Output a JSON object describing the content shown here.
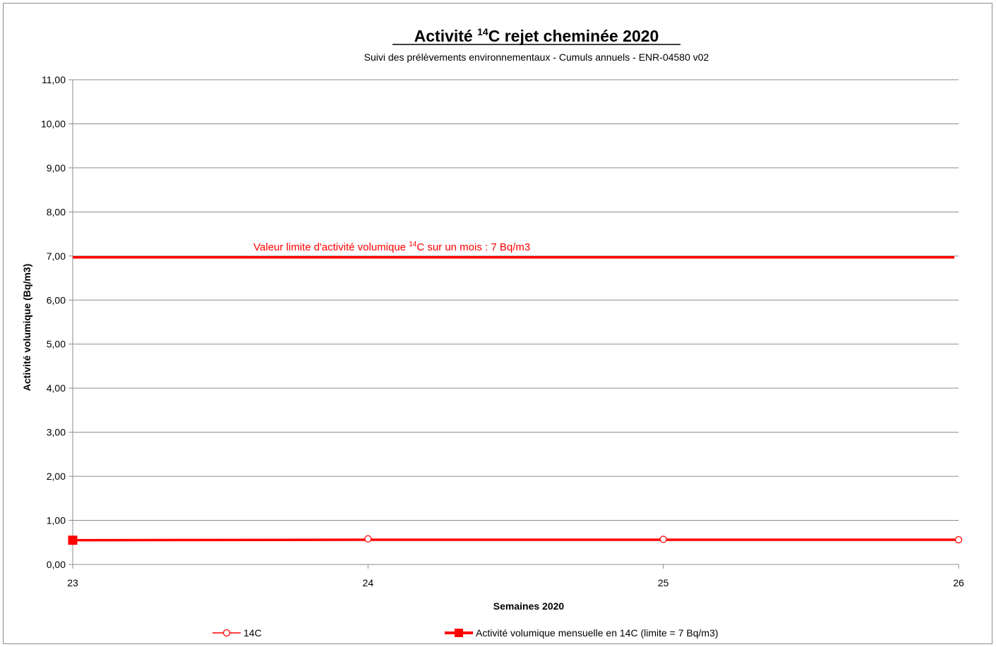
{
  "chart_data": {
    "type": "line",
    "title_main": "Activité ",
    "title_sup": "14",
    "title_rest": "C rejet cheminée 2020",
    "subtitle": "Suivi des prélèvements environnementaux - Cumuls annuels - ENR-04580 v02",
    "xlabel": "Semaines 2020",
    "ylabel": "Activité volumique (Bq/m3)",
    "x_ticks": [
      "23",
      "24",
      "25",
      "26"
    ],
    "y_ticks": [
      "0,00",
      "1,00",
      "2,00",
      "3,00",
      "4,00",
      "5,00",
      "6,00",
      "7,00",
      "8,00",
      "9,00",
      "10,00",
      "11,00"
    ],
    "xlim": [
      23,
      26
    ],
    "ylim": [
      0,
      11
    ],
    "grid": true,
    "legend_position": "bottom",
    "limit_line": {
      "value": 6.97,
      "label_before": "Valeur limite d'activité volumique ",
      "label_sup": "14",
      "label_after": "C sur un mois : 7 Bq/m3"
    },
    "series": [
      {
        "name": "14C",
        "marker": "open-circle",
        "color": "#ff0000",
        "points": [
          {
            "x": 24,
            "y": 0.58
          },
          {
            "x": 25,
            "y": 0.57
          },
          {
            "x": 26,
            "y": 0.56
          }
        ]
      },
      {
        "name": "Activité  volumique mensuelle en 14C  (limite = 7 Bq/m3)",
        "marker": "filled-square",
        "color": "#ff0000",
        "points": [
          {
            "x": 23,
            "y": 0.55
          },
          {
            "x": 24,
            "y": 0.56
          },
          {
            "x": 25,
            "y": 0.56
          },
          {
            "x": 26,
            "y": 0.56
          }
        ]
      }
    ]
  }
}
